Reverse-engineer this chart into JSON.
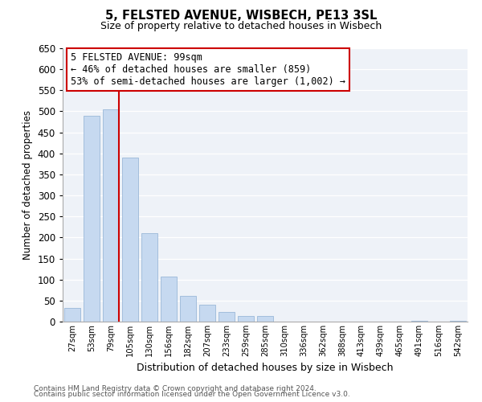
{
  "title": "5, FELSTED AVENUE, WISBECH, PE13 3SL",
  "subtitle": "Size of property relative to detached houses in Wisbech",
  "xlabel": "Distribution of detached houses by size in Wisbech",
  "ylabel": "Number of detached properties",
  "bar_labels": [
    "27sqm",
    "53sqm",
    "79sqm",
    "105sqm",
    "130sqm",
    "156sqm",
    "182sqm",
    "207sqm",
    "233sqm",
    "259sqm",
    "285sqm",
    "310sqm",
    "336sqm",
    "362sqm",
    "388sqm",
    "413sqm",
    "439sqm",
    "465sqm",
    "491sqm",
    "516sqm",
    "542sqm"
  ],
  "bar_values": [
    33,
    490,
    505,
    390,
    210,
    107,
    62,
    40,
    22,
    13,
    13,
    0,
    0,
    0,
    0,
    0,
    0,
    0,
    2,
    0,
    2
  ],
  "bar_color": "#c6d9f0",
  "bar_edgecolor": "#9ab8d8",
  "vline_color": "#cc0000",
  "ylim": [
    0,
    650
  ],
  "yticks": [
    0,
    50,
    100,
    150,
    200,
    250,
    300,
    350,
    400,
    450,
    500,
    550,
    600,
    650
  ],
  "annotation_title": "5 FELSTED AVENUE: 99sqm",
  "annotation_line1": "← 46% of detached houses are smaller (859)",
  "annotation_line2": "53% of semi-detached houses are larger (1,002) →",
  "footer_line1": "Contains HM Land Registry data © Crown copyright and database right 2024.",
  "footer_line2": "Contains public sector information licensed under the Open Government Licence v3.0.",
  "background_color": "#ffffff",
  "plot_bg_color": "#eef2f8",
  "grid_color": "#ffffff"
}
